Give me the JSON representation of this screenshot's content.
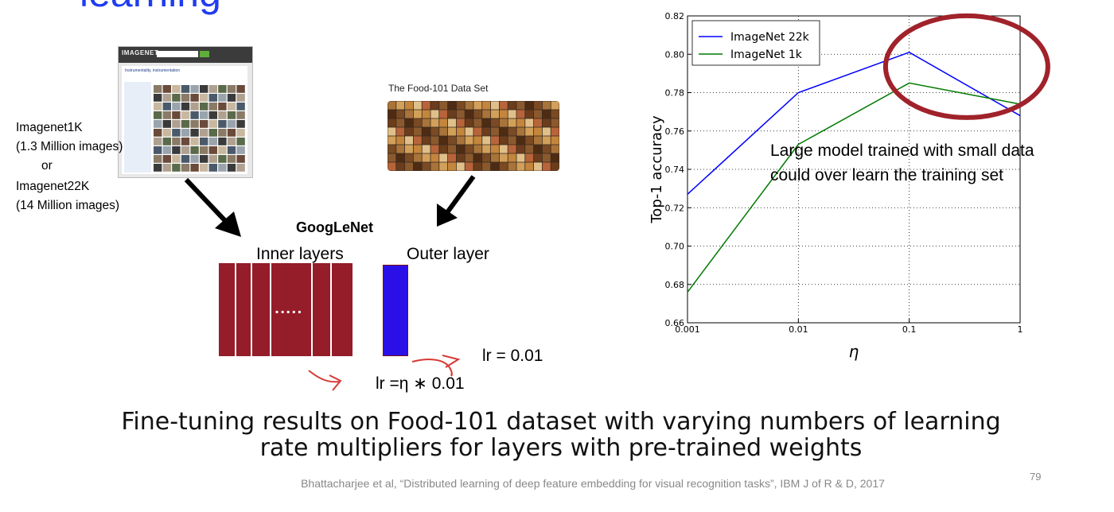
{
  "slide": {
    "title": "learning",
    "left_text": [
      "Imagenet1K",
      "(1.3 Million images)",
      "or",
      "Imagenet22K",
      "(14 Million images)"
    ],
    "imagenet_thumb": {
      "logo": "IMAGENET",
      "heading": "Instrumentality, instrumentation"
    },
    "food_title": "The Food-101 Data Set",
    "network_title": "GoogLeNet",
    "inner_label": "Inner layers",
    "outer_label": "Outer layer",
    "inner_dots": ".....",
    "lr_inner": "lr =η ∗ 0.01",
    "lr_outer": "lr = 0.01",
    "annotation": [
      "Large model trained with small data",
      "could over learn the training set"
    ],
    "caption_lines": [
      "Fine-tuning results on Food-101 dataset with varying numbers of learning",
      "rate multipliers for layers with pre-trained weights"
    ],
    "citation": "Bhattacharjee et al, “Distributed learning of deep feature embedding for visual recognition tasks”, IBM J of R & D, 2017",
    "page_number": "79"
  },
  "colors": {
    "title_blue": "#1f3cf0",
    "inner_layers": "#951c29",
    "outer_layer": "#2a10e6",
    "highlight_circle": "#a0222a",
    "arrow_red": "#d63a36"
  },
  "chart_data": {
    "type": "line",
    "x_scale": "log",
    "x": [
      0.001,
      0.01,
      0.1,
      1
    ],
    "xticks": [
      "0.001",
      "0.01",
      "0.1",
      "1"
    ],
    "xlabel": "η",
    "ylabel": "Top-1 accuracy",
    "ylim": [
      0.66,
      0.82
    ],
    "yticks": [
      "0.66",
      "0.68",
      "0.70",
      "0.72",
      "0.74",
      "0.76",
      "0.78",
      "0.80",
      "0.82"
    ],
    "grid": true,
    "legend_position": "top-left",
    "series": [
      {
        "name": "ImageNet 22k",
        "color": "#0000ff",
        "values": [
          0.727,
          0.78,
          0.801,
          0.768
        ]
      },
      {
        "name": "ImageNet 1k",
        "color": "#007a00",
        "values": [
          0.676,
          0.753,
          0.785,
          0.774
        ]
      }
    ]
  }
}
